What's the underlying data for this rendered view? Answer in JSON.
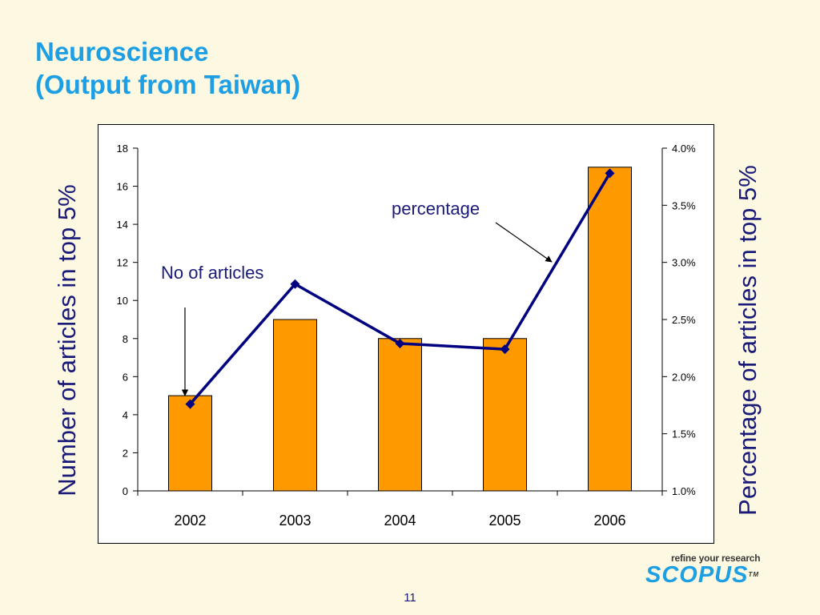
{
  "slide": {
    "title_line1": "Neuroscience",
    "title_line2": "(Output from Taiwan)",
    "page_number": "11"
  },
  "brand": {
    "tagline": "refine your research",
    "name": "SCOPUS",
    "tm": "TM"
  },
  "colors": {
    "title": "#1e9fe3",
    "axis_title": "#1a1a78",
    "bar_fill": "#ff9900",
    "line": "#000080",
    "background": "#fcf8e2"
  },
  "chart_data": {
    "type": "bar",
    "categories": [
      "2002",
      "2003",
      "2004",
      "2005",
      "2006"
    ],
    "series": [
      {
        "name": "No of articles",
        "type": "bar",
        "axis": "left",
        "values": [
          5,
          9,
          8,
          8,
          17
        ]
      },
      {
        "name": "percentage",
        "type": "line",
        "axis": "right",
        "values": [
          1.76,
          2.81,
          2.29,
          2.24,
          3.78
        ]
      }
    ],
    "ylabel": "Number of articles in top 5%",
    "y2label": "Percentage of articles in top 5%",
    "ylim": [
      0,
      18
    ],
    "yticks": [
      "0",
      "2",
      "4",
      "6",
      "8",
      "10",
      "12",
      "14",
      "16",
      "18"
    ],
    "y2lim": [
      1.0,
      4.0
    ],
    "y2ticks": [
      "1.0%",
      "1.5%",
      "2.0%",
      "2.5%",
      "3.0%",
      "3.5%",
      "4.0%"
    ],
    "grid": false,
    "annotations": [
      "No of articles",
      "percentage"
    ]
  }
}
